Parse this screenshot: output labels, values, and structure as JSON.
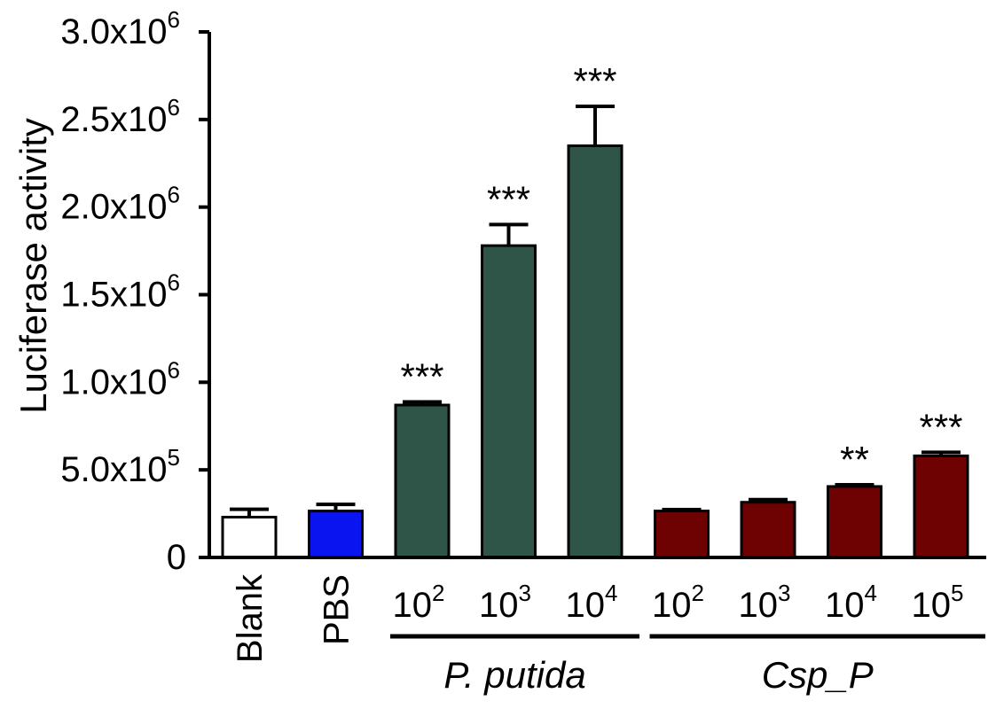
{
  "chart_data": {
    "type": "bar",
    "ylabel": "Luciferase activity",
    "ylim": [
      0,
      3000000
    ],
    "yticks": [
      {
        "value": 0,
        "label": "0"
      },
      {
        "value": 500000,
        "label": "5.0x10",
        "exp": "5"
      },
      {
        "value": 1000000,
        "label": "1.0x10",
        "exp": "6"
      },
      {
        "value": 1500000,
        "label": "1.5x10",
        "exp": "6"
      },
      {
        "value": 2000000,
        "label": "2.0x10",
        "exp": "6"
      },
      {
        "value": 2500000,
        "label": "2.5x10",
        "exp": "6"
      },
      {
        "value": 3000000,
        "label": "3.0x10",
        "exp": "6"
      }
    ],
    "bars": [
      {
        "category": "Blank",
        "value": 230000,
        "error": 45000,
        "color": "#ffffff",
        "sig": "",
        "vertical": true
      },
      {
        "category": "PBS",
        "value": 265000,
        "error": 38000,
        "color": "#0a14f0",
        "sig": "",
        "vertical": true
      },
      {
        "category": "10",
        "exp": "2",
        "value": 870000,
        "error": 18000,
        "color": "#2f5548",
        "sig": "***"
      },
      {
        "category": "10",
        "exp": "3",
        "value": 1780000,
        "error": 120000,
        "color": "#2f5548",
        "sig": "***"
      },
      {
        "category": "10",
        "exp": "4",
        "value": 2350000,
        "error": 225000,
        "color": "#2f5548",
        "sig": "***"
      },
      {
        "category": "10",
        "exp": "2",
        "value": 265000,
        "error": 8000,
        "color": "#6e0202",
        "sig": ""
      },
      {
        "category": "10",
        "exp": "3",
        "value": 315000,
        "error": 15000,
        "color": "#6e0202",
        "sig": ""
      },
      {
        "category": "10",
        "exp": "4",
        "value": 405000,
        "error": 10000,
        "color": "#6e0202",
        "sig": "**"
      },
      {
        "category": "10",
        "exp": "5",
        "value": 580000,
        "error": 20000,
        "color": "#6e0202",
        "sig": "***"
      }
    ],
    "groups": [
      {
        "label": "P. putida",
        "bars": [
          2,
          4
        ]
      },
      {
        "label": "Csp_P",
        "bars": [
          5,
          8
        ]
      }
    ]
  }
}
